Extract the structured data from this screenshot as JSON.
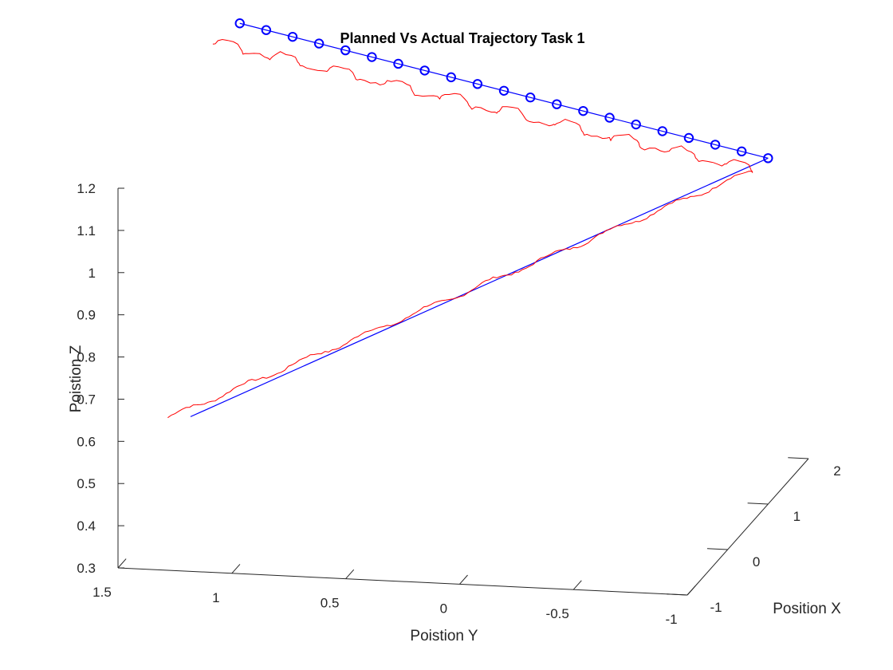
{
  "chart_data": {
    "type": "line",
    "projection": "3d",
    "title": "Planned Vs Actual Trajectory Task 1",
    "xlabel": "Position X",
    "ylabel": "Poistion Y",
    "zlabel": "Poistion Z",
    "xlim": [
      -1,
      2
    ],
    "ylim": [
      -1,
      1.5
    ],
    "zlim": [
      0.3,
      1.2
    ],
    "x_ticks": [
      "-1",
      "0",
      "1",
      "2"
    ],
    "y_ticks": [
      "1.5",
      "1",
      "0.5",
      "0",
      "-0.5",
      "-1"
    ],
    "z_ticks": [
      "0.3",
      "0.4",
      "0.5",
      "0.6",
      "0.7",
      "0.8",
      "0.9",
      "1",
      "1.1",
      "1.2"
    ],
    "grid": false,
    "series": [
      {
        "role": "planned",
        "color": "#0000ff",
        "marker": "circle",
        "segments": [
          {
            "from": {
              "x": -0.05,
              "y": 1.35,
              "z": 0.56
            },
            "to": {
              "x": 1.0,
              "y": -1.0,
              "z": 1.12
            },
            "markers": false
          },
          {
            "from": {
              "x": 1.0,
              "y": -1.0,
              "z": 1.12
            },
            "to": {
              "x": 1.0,
              "y": 1.32,
              "z": 1.38
            },
            "markers": true,
            "points": 21
          }
        ]
      },
      {
        "role": "actual",
        "color": "#ff0000",
        "marker": "none",
        "segments": [
          {
            "from": {
              "x": -0.05,
              "y": 1.45,
              "z": 0.555
            },
            "to": {
              "x": 0.9,
              "y": -0.95,
              "z": 1.1
            },
            "wobble": 0.006
          },
          {
            "from": {
              "x": 0.9,
              "y": -0.95,
              "z": 1.1
            },
            "to": {
              "x": 0.85,
              "y": 1.42,
              "z": 1.35
            },
            "wobble": 0.01,
            "loops": true
          }
        ]
      }
    ]
  }
}
